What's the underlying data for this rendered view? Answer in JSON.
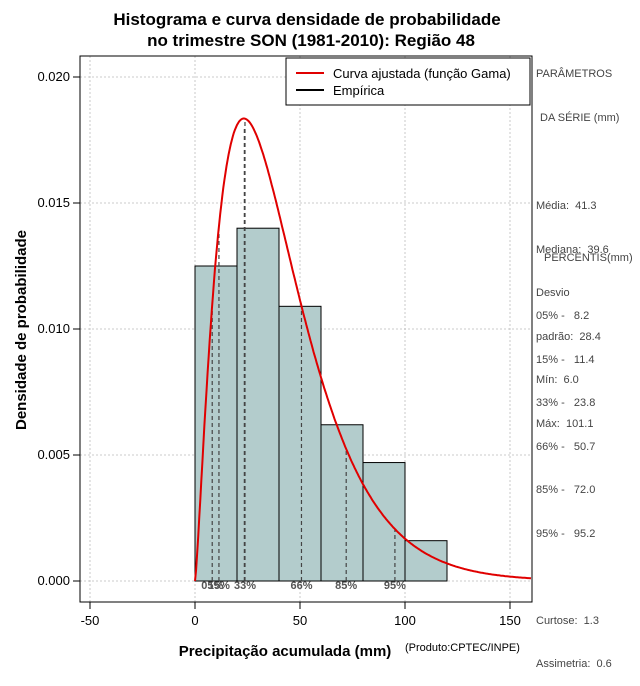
{
  "chart_data": {
    "type": "bar",
    "title_line1": "Histograma e curva densidade de probabilidade",
    "title_line2": "no trimestre SON (1981-2010): Região 48",
    "xlabel": "Precipitação acumulada (mm)",
    "ylabel": "Densidade de probabilidade",
    "credit": "(Produto:CPTEC/INPE)",
    "xlim": [
      -50,
      160
    ],
    "ylim": [
      0,
      0.02
    ],
    "x_ticks": [
      -50,
      0,
      50,
      100,
      150
    ],
    "y_ticks": [
      0.0,
      0.005,
      0.01,
      0.015,
      0.02
    ],
    "y_tick_labels": [
      "0.000",
      "0.005",
      "0.010",
      "0.015",
      "0.020"
    ],
    "bins": [
      {
        "x0": 0,
        "x1": 20,
        "density": 0.0125
      },
      {
        "x0": 20,
        "x1": 40,
        "density": 0.014
      },
      {
        "x0": 40,
        "x1": 60,
        "density": 0.0109
      },
      {
        "x0": 60,
        "x1": 80,
        "density": 0.0062
      },
      {
        "x0": 80,
        "x1": 100,
        "density": 0.0047
      },
      {
        "x0": 100,
        "x1": 120,
        "density": 0.0016
      }
    ],
    "gamma_fit": {
      "shape": 2.3,
      "scale": 17.9
    },
    "mode_line": {
      "x": 23.5,
      "density": 0.018
    },
    "percentile_markers": [
      {
        "label": "05%",
        "x": 8.2
      },
      {
        "label": "15%",
        "x": 11.4
      },
      {
        "label": "33%",
        "x": 23.8
      },
      {
        "label": "66%",
        "x": 50.7
      },
      {
        "label": "85%",
        "x": 72.0
      },
      {
        "label": "95%",
        "x": 95.2
      }
    ],
    "legend": [
      {
        "label": "Curva ajustada (função Gama)",
        "color": "#e00000"
      },
      {
        "label": "Empírica",
        "color": "#000000"
      }
    ],
    "colors": {
      "bar_fill": "#b3cccc",
      "curve": "#e00000",
      "grid": "#bbbbbb"
    }
  },
  "series_params": {
    "heading_1": "PARÂMETROS",
    "heading_2": "DA SÉRIE (mm)",
    "lines": [
      "Média:  41.3",
      "Mediana:  39.6",
      "Desvio",
      "padrão:  28.4",
      "Mín:  6.0",
      "Máx:  101.1"
    ]
  },
  "percentiles": {
    "heading": "PERCENTIS(mm)",
    "lines": [
      "05% -   8.2",
      "15% -   11.4",
      "33% -   23.8",
      "66% -   50.7",
      "85% -   72.0",
      "95% -   95.2"
    ]
  },
  "shape_stats": {
    "lines": [
      "Curtose:  1.3",
      "Assimetria:  0.6"
    ]
  }
}
